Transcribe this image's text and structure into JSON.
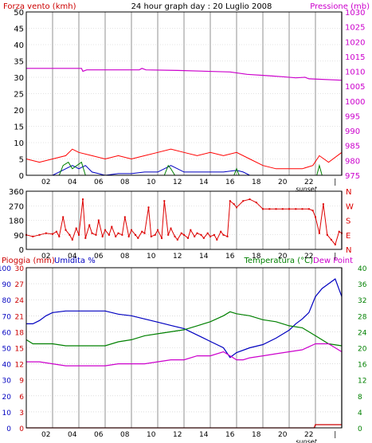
{
  "header": {
    "left_label": "Forza vento (kmh)",
    "title": "24 hour graph day : 20 Luglio 2008",
    "right_label": "Pressione (mb)"
  },
  "colors": {
    "wind": "#ff0000",
    "gust": "#ff0000",
    "wind_avg": "#0000c0",
    "wind_green": "#008000",
    "pressure": "#cc00cc",
    "direction": "#dd0000",
    "humidity": "#0000c0",
    "temperature": "#008000",
    "dew_point": "#cc00cc",
    "rain": "#cc0000",
    "grid": "#c8c8c8",
    "axis_left_red": "#cc0000",
    "axis_left_blue": "#0000c0",
    "axis_right_green": "#008000",
    "axis_right_magenta": "#cc00cc"
  },
  "x_axis": {
    "ticks": [
      "02",
      "04",
      "06",
      "08",
      "10",
      "12",
      "14",
      "16",
      "18",
      "20",
      "22",
      "|"
    ],
    "sunset_label": "sunset"
  },
  "chart_data": [
    {
      "type": "line",
      "panel": "wind-pressure",
      "left_axis": {
        "label": "Forza vento (kmh)",
        "ticks": [
          0,
          5,
          10,
          15,
          20,
          25,
          30,
          35,
          40,
          45,
          50
        ],
        "ylim": [
          0,
          50
        ]
      },
      "right_axis": {
        "label": "Pressione (mb)",
        "ticks": [
          975,
          980,
          985,
          990,
          995,
          1000,
          1005,
          1010,
          1015,
          1020,
          1025,
          1030
        ],
        "ylim": [
          975,
          1030
        ]
      },
      "x_unit": "hour",
      "series": [
        {
          "axis": "right",
          "points": [
            [
              0,
              1011
            ],
            [
              4.2,
              1011
            ],
            [
              4.3,
              1010
            ],
            [
              4.6,
              1010.5
            ],
            [
              8.6,
              1010.5
            ],
            [
              8.8,
              1011
            ],
            [
              9.1,
              1010.5
            ],
            [
              11.5,
              1010.3
            ],
            [
              15.5,
              1009.8
            ],
            [
              16.8,
              1009
            ],
            [
              18.5,
              1008.5
            ],
            [
              19.5,
              1008.2
            ],
            [
              20.5,
              1007.8
            ],
            [
              21.2,
              1008
            ],
            [
              21.5,
              1007.5
            ],
            [
              24,
              1007
            ]
          ]
        },
        {
          "axis": "left",
          "points": [
            [
              0,
              5
            ],
            [
              1,
              4
            ],
            [
              2,
              5
            ],
            [
              3,
              6
            ],
            [
              3.5,
              8
            ],
            [
              4,
              7
            ],
            [
              5,
              6
            ],
            [
              6,
              5
            ],
            [
              7,
              6
            ],
            [
              8,
              5
            ],
            [
              9,
              6
            ],
            [
              10,
              7
            ],
            [
              11,
              8
            ],
            [
              12,
              7
            ],
            [
              13,
              6
            ],
            [
              14,
              7
            ],
            [
              15,
              6
            ],
            [
              16,
              7
            ],
            [
              17,
              5
            ],
            [
              18,
              3
            ],
            [
              19,
              2
            ],
            [
              20,
              2
            ],
            [
              21,
              2
            ],
            [
              21.8,
              3
            ],
            [
              22.3,
              6
            ],
            [
              23,
              4
            ],
            [
              24,
              7
            ]
          ]
        },
        {
          "axis": "left",
          "points": [
            [
              0,
              0
            ],
            [
              1,
              0
            ],
            [
              2,
              0
            ],
            [
              2.5,
              1
            ],
            [
              3,
              2
            ],
            [
              3.5,
              3
            ],
            [
              4,
              2
            ],
            [
              4.5,
              3
            ],
            [
              5,
              1
            ],
            [
              5.5,
              0.5
            ],
            [
              6,
              0
            ],
            [
              7,
              0.5
            ],
            [
              8,
              0.5
            ],
            [
              9,
              1
            ],
            [
              10,
              1
            ],
            [
              10.5,
              2
            ],
            [
              11,
              3
            ],
            [
              11.5,
              2
            ],
            [
              12,
              1
            ],
            [
              13,
              1
            ],
            [
              14,
              1
            ],
            [
              15,
              1
            ],
            [
              16,
              1.5
            ],
            [
              16.5,
              1
            ],
            [
              17,
              0
            ],
            [
              18,
              0
            ],
            [
              19,
              0
            ],
            [
              20,
              0
            ],
            [
              21,
              0
            ],
            [
              22,
              0
            ],
            [
              23,
              0
            ],
            [
              24,
              0
            ]
          ]
        },
        {
          "axis": "left",
          "points": [
            [
              0,
              0
            ],
            [
              2.5,
              0
            ],
            [
              2.8,
              3
            ],
            [
              3.2,
              4
            ],
            [
              3.5,
              2
            ],
            [
              4.2,
              4
            ],
            [
              4.5,
              0
            ],
            [
              10.5,
              0
            ],
            [
              10.8,
              3
            ],
            [
              11,
              2
            ],
            [
              11.3,
              0
            ],
            [
              15.8,
              0
            ],
            [
              16,
              2
            ],
            [
              16.2,
              0
            ],
            [
              22.1,
              0
            ],
            [
              22.3,
              3
            ],
            [
              22.5,
              0
            ],
            [
              24,
              0
            ]
          ]
        }
      ]
    },
    {
      "type": "scatter",
      "panel": "wind-direction",
      "left_axis": {
        "ticks": [
          0,
          90,
          180,
          270,
          360
        ],
        "ylim": [
          0,
          360
        ]
      },
      "right_axis": {
        "ticks": [
          "N",
          "W",
          "S",
          "E",
          "N"
        ]
      },
      "x_unit": "hour",
      "points": [
        [
          0,
          90
        ],
        [
          0.5,
          80
        ],
        [
          1,
          90
        ],
        [
          1.5,
          100
        ],
        [
          2,
          95
        ],
        [
          2.3,
          110
        ],
        [
          2.5,
          80
        ],
        [
          2.8,
          200
        ],
        [
          3,
          120
        ],
        [
          3.3,
          90
        ],
        [
          3.5,
          60
        ],
        [
          3.8,
          130
        ],
        [
          4,
          90
        ],
        [
          4.3,
          310
        ],
        [
          4.5,
          70
        ],
        [
          4.8,
          150
        ],
        [
          5,
          100
        ],
        [
          5.3,
          90
        ],
        [
          5.5,
          180
        ],
        [
          5.8,
          80
        ],
        [
          6,
          120
        ],
        [
          6.3,
          90
        ],
        [
          6.5,
          140
        ],
        [
          6.8,
          80
        ],
        [
          7,
          100
        ],
        [
          7.3,
          90
        ],
        [
          7.5,
          200
        ],
        [
          7.8,
          80
        ],
        [
          8,
          120
        ],
        [
          8.3,
          90
        ],
        [
          8.5,
          70
        ],
        [
          8.8,
          110
        ],
        [
          9,
          100
        ],
        [
          9.3,
          260
        ],
        [
          9.5,
          80
        ],
        [
          9.8,
          90
        ],
        [
          10,
          120
        ],
        [
          10.3,
          70
        ],
        [
          10.5,
          300
        ],
        [
          10.8,
          90
        ],
        [
          11,
          130
        ],
        [
          11.3,
          80
        ],
        [
          11.5,
          60
        ],
        [
          11.8,
          100
        ],
        [
          12,
          90
        ],
        [
          12.3,
          70
        ],
        [
          12.5,
          120
        ],
        [
          12.8,
          80
        ],
        [
          13,
          100
        ],
        [
          13.3,
          90
        ],
        [
          13.5,
          70
        ],
        [
          13.8,
          100
        ],
        [
          14,
          80
        ],
        [
          14.3,
          90
        ],
        [
          14.5,
          60
        ],
        [
          14.8,
          110
        ],
        [
          15,
          90
        ],
        [
          15.3,
          80
        ],
        [
          15.5,
          300
        ],
        [
          15.8,
          280
        ],
        [
          16,
          260
        ],
        [
          16.5,
          300
        ],
        [
          17,
          310
        ],
        [
          17.5,
          290
        ],
        [
          18,
          250
        ],
        [
          18.5,
          250
        ],
        [
          19,
          250
        ],
        [
          19.5,
          250
        ],
        [
          20,
          250
        ],
        [
          20.5,
          250
        ],
        [
          21,
          250
        ],
        [
          21.5,
          250
        ],
        [
          21.8,
          240
        ],
        [
          22,
          200
        ],
        [
          22.3,
          100
        ],
        [
          22.6,
          280
        ],
        [
          22.9,
          90
        ],
        [
          23.2,
          60
        ],
        [
          23.5,
          30
        ],
        [
          23.8,
          110
        ],
        [
          24,
          100
        ]
      ]
    },
    {
      "type": "line",
      "panel": "temperature-humidity",
      "left_axis": {
        "label": "Pioggia (mm)",
        "ticks": [
          0,
          3,
          6,
          9,
          12,
          15,
          18,
          21,
          24,
          27,
          30
        ],
        "ylim": [
          0,
          30
        ]
      },
      "left_axis_2": {
        "label": "Umidita %",
        "ticks": [
          0,
          10,
          20,
          30,
          40,
          50,
          60,
          70,
          80,
          90,
          100
        ],
        "ylim": [
          0,
          100
        ]
      },
      "right_axis": {
        "label": "Temperatura (°C)",
        "ticks": [
          0,
          4,
          8,
          12,
          16,
          20,
          24,
          28,
          32,
          36,
          40
        ],
        "ylim": [
          0,
          40
        ]
      },
      "right_label_2": "Dew Point",
      "x_unit": "hour",
      "series": [
        {
          "axis": "left_2",
          "points": [
            [
              0,
              65
            ],
            [
              0.5,
              65
            ],
            [
              1,
              67
            ],
            [
              1.5,
              70
            ],
            [
              2,
              72
            ],
            [
              3,
              73
            ],
            [
              4,
              73
            ],
            [
              5,
              73
            ],
            [
              6,
              73
            ],
            [
              7,
              71
            ],
            [
              8,
              70
            ],
            [
              9,
              68
            ],
            [
              10,
              66
            ],
            [
              11,
              64
            ],
            [
              12,
              62
            ],
            [
              13,
              58
            ],
            [
              14,
              54
            ],
            [
              15,
              50
            ],
            [
              15.5,
              44
            ],
            [
              16,
              47
            ],
            [
              17,
              50
            ],
            [
              18,
              52
            ],
            [
              19,
              56
            ],
            [
              20,
              61
            ],
            [
              20.5,
              65
            ],
            [
              21,
              68
            ],
            [
              21.5,
              72
            ],
            [
              22,
              82
            ],
            [
              22.5,
              87
            ],
            [
              23,
              90
            ],
            [
              23.5,
              93
            ],
            [
              24,
              82
            ]
          ]
        },
        {
          "axis": "right",
          "points": [
            [
              0,
              22
            ],
            [
              0.5,
              21
            ],
            [
              1,
              21
            ],
            [
              2,
              21
            ],
            [
              3,
              20.5
            ],
            [
              4,
              20.5
            ],
            [
              5,
              20.5
            ],
            [
              6,
              20.5
            ],
            [
              7,
              21.5
            ],
            [
              8,
              22
            ],
            [
              9,
              23
            ],
            [
              10,
              23.5
            ],
            [
              11,
              24
            ],
            [
              12,
              24.5
            ],
            [
              13,
              25.5
            ],
            [
              14,
              26.5
            ],
            [
              15,
              28
            ],
            [
              15.5,
              29
            ],
            [
              16,
              28.5
            ],
            [
              17,
              28
            ],
            [
              18,
              27
            ],
            [
              19,
              26.5
            ],
            [
              20,
              25.5
            ],
            [
              21,
              25
            ],
            [
              22,
              23
            ],
            [
              23,
              21
            ],
            [
              24,
              20.5
            ]
          ]
        },
        {
          "axis": "right",
          "points": [
            [
              0,
              16.5
            ],
            [
              1,
              16.5
            ],
            [
              2,
              16
            ],
            [
              3,
              15.5
            ],
            [
              4,
              15.5
            ],
            [
              5,
              15.5
            ],
            [
              6,
              15.5
            ],
            [
              7,
              16
            ],
            [
              8,
              16
            ],
            [
              9,
              16
            ],
            [
              10,
              16.5
            ],
            [
              11,
              17
            ],
            [
              12,
              17
            ],
            [
              13,
              18
            ],
            [
              14,
              18
            ],
            [
              15,
              19
            ],
            [
              15.5,
              18
            ],
            [
              16,
              17
            ],
            [
              16.5,
              17
            ],
            [
              17,
              17.5
            ],
            [
              18,
              18
            ],
            [
              19,
              18.5
            ],
            [
              20,
              19
            ],
            [
              21,
              19.5
            ],
            [
              22,
              21
            ],
            [
              23,
              21
            ],
            [
              24,
              19
            ]
          ]
        },
        {
          "axis": "left",
          "points": [
            [
              0,
              0
            ],
            [
              21.9,
              0
            ],
            [
              22,
              0.6
            ],
            [
              24,
              0.6
            ]
          ]
        }
      ]
    }
  ]
}
